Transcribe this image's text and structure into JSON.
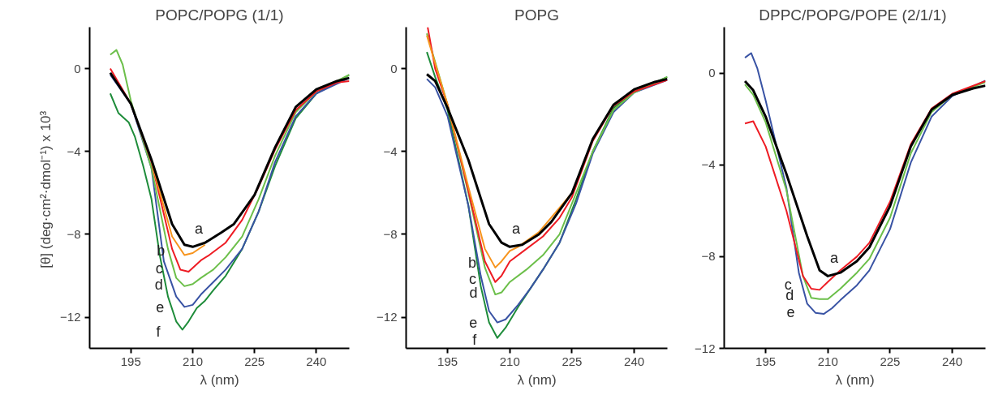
{
  "chart_data": [
    {
      "type": "line",
      "title": "POPC/POPG (1/1)",
      "xlabel": "λ (nm)",
      "ylabel": "[θ]  (deg·cm²·dmol⁻¹) x 10³",
      "xlim": [
        185,
        248
      ],
      "ylim": [
        -13.5,
        2
      ],
      "xticks": [
        195,
        210,
        225,
        240
      ],
      "yticks": [
        0,
        -4,
        -8,
        -12
      ],
      "series": [
        {
          "color": "#000000",
          "x": [
            190,
            195,
            200,
            205,
            208,
            210,
            213,
            217,
            220,
            225,
            230,
            235,
            240,
            245,
            248
          ],
          "values": [
            -0.2,
            -1.7,
            -4.4,
            -7.5,
            -8.5,
            -8.6,
            -8.4,
            -7.9,
            -7.5,
            -6.1,
            -3.8,
            -1.85,
            -1.0,
            -0.6,
            -0.45
          ]
        },
        {
          "color": "#f7941d",
          "x": [
            200,
            205,
            208,
            210,
            213
          ],
          "values": [
            -4.5,
            -8.1,
            -9.0,
            -8.9,
            -8.5
          ]
        },
        {
          "color": "#ee1c24",
          "x": [
            190,
            195,
            200,
            205,
            207,
            209,
            212,
            214,
            218,
            222,
            226,
            230,
            235,
            240,
            245,
            248
          ],
          "values": [
            0.0,
            -1.7,
            -4.5,
            -8.7,
            -9.7,
            -9.8,
            -9.25,
            -9.0,
            -8.4,
            -7.3,
            -5.7,
            -3.9,
            -2.0,
            -1.1,
            -0.67,
            -0.6
          ]
        },
        {
          "color": "#6cbf4a",
          "x": [
            190,
            191.5,
            193,
            195,
            200,
            204,
            206,
            208,
            210,
            212,
            215,
            218,
            222,
            226,
            230,
            235,
            240,
            248
          ],
          "values": [
            0.67,
            0.9,
            0.2,
            -1.55,
            -4.8,
            -8.7,
            -10.1,
            -10.5,
            -10.4,
            -10.1,
            -9.7,
            -9.1,
            -8.1,
            -6.3,
            -4.2,
            -2.1,
            -1.1,
            -0.3
          ]
        },
        {
          "color": "#3953a4",
          "x": [
            190,
            195,
            200,
            203,
            206,
            208,
            210,
            212,
            215,
            218,
            222,
            226,
            230,
            235,
            240,
            248
          ],
          "values": [
            -0.3,
            -1.7,
            -4.8,
            -9.3,
            -11.0,
            -11.5,
            -11.4,
            -10.9,
            -10.3,
            -9.7,
            -8.7,
            -6.9,
            -4.5,
            -2.3,
            -1.2,
            -0.45
          ]
        },
        {
          "color": "#1e8c3a",
          "x": [
            190,
            192,
            194.5,
            196,
            198,
            200,
            202,
            204,
            206,
            207.5,
            209,
            211,
            213,
            215,
            218,
            222,
            226,
            230,
            235,
            240,
            248
          ],
          "values": [
            -1.2,
            -2.15,
            -2.6,
            -3.3,
            -4.7,
            -6.3,
            -9.0,
            -11.0,
            -12.2,
            -12.6,
            -12.2,
            -11.55,
            -11.2,
            -10.7,
            -10.0,
            -8.7,
            -6.9,
            -4.7,
            -2.4,
            -1.2,
            -0.3
          ]
        }
      ],
      "annotations": [
        "a",
        "b",
        "c",
        "d",
        "e",
        "f"
      ]
    },
    {
      "type": "line",
      "title": "POPG",
      "xlabel": "λ (nm)",
      "xlim": [
        185,
        248
      ],
      "ylim": [
        -13.5,
        2
      ],
      "xticks": [
        195,
        210,
        225,
        240
      ],
      "yticks": [
        0,
        -4,
        -8,
        -12
      ],
      "series": [
        {
          "color": "#000000",
          "x": [
            190,
            192,
            195,
            200,
            205,
            208,
            210,
            213,
            217,
            220,
            225,
            230,
            235,
            240,
            245,
            248
          ],
          "values": [
            -0.27,
            -0.6,
            -1.9,
            -4.4,
            -7.5,
            -8.4,
            -8.6,
            -8.5,
            -8.0,
            -7.4,
            -6.0,
            -3.4,
            -1.75,
            -1.0,
            -0.64,
            -0.5
          ]
        },
        {
          "color": "#f7941d",
          "x": [
            190,
            195,
            200,
            204,
            206.5,
            208,
            210,
            212,
            217,
            225
          ],
          "values": [
            1.6,
            -1.75,
            -5.7,
            -8.7,
            -9.6,
            -9.3,
            -8.8,
            -8.6,
            -7.9,
            -6.0
          ]
        },
        {
          "color": "#ee1c24",
          "x": [
            190.2,
            192,
            195,
            200,
            204,
            206.5,
            208,
            210,
            214,
            218,
            222,
            225,
            230,
            235,
            240,
            248
          ],
          "values": [
            2.0,
            0.0,
            -1.75,
            -5.9,
            -9.3,
            -10.3,
            -10.0,
            -9.3,
            -8.7,
            -8.1,
            -7.2,
            -6.2,
            -3.5,
            -1.8,
            -1.1,
            -0.55
          ]
        },
        {
          "color": "#6cbf4a",
          "x": [
            190,
            195,
            200,
            204,
            206.5,
            208,
            210,
            214,
            218,
            222,
            226,
            230,
            235,
            240,
            248
          ],
          "values": [
            1.7,
            -1.75,
            -6.0,
            -9.6,
            -10.9,
            -10.8,
            -10.3,
            -9.7,
            -9.0,
            -8.0,
            -6.0,
            -4.0,
            -2.0,
            -1.15,
            -0.4
          ]
        },
        {
          "color": "#3953a4",
          "x": [
            190,
            192,
            195,
            200,
            203,
            205,
            207,
            209,
            212,
            215,
            218,
            222,
            226,
            230,
            235,
            240,
            248
          ],
          "values": [
            -0.5,
            -0.9,
            -2.3,
            -6.6,
            -10.0,
            -11.7,
            -12.25,
            -12.1,
            -11.4,
            -10.6,
            -9.7,
            -8.4,
            -6.5,
            -4.1,
            -2.1,
            -1.15,
            -0.55
          ]
        },
        {
          "color": "#1e8c3a",
          "x": [
            190,
            192,
            195,
            200,
            203,
            205,
            207,
            209,
            212,
            215,
            218,
            222,
            226,
            230,
            235,
            240,
            248
          ],
          "values": [
            0.8,
            -0.4,
            -2.0,
            -6.6,
            -10.5,
            -12.25,
            -13.0,
            -12.5,
            -11.5,
            -10.6,
            -9.7,
            -8.4,
            -6.3,
            -4.0,
            -1.9,
            -1.1,
            -0.4
          ]
        }
      ],
      "annotations": [
        "a",
        "b",
        "c",
        "d",
        "e",
        "f"
      ]
    },
    {
      "type": "line",
      "title": "DPPC/POPG/POPE  (2/1/1)",
      "xlabel": "λ (nm)",
      "xlim": [
        185,
        248
      ],
      "ylim": [
        -12,
        2
      ],
      "xticks": [
        195,
        210,
        225,
        240
      ],
      "yticks": [
        0,
        -4,
        -8,
        -12
      ],
      "series": [
        {
          "color": "#000000",
          "x": [
            190,
            192,
            195,
            200,
            205,
            208,
            210,
            213,
            217,
            220,
            225,
            230,
            235,
            240,
            245,
            248
          ],
          "values": [
            -0.35,
            -0.75,
            -1.9,
            -4.4,
            -7.1,
            -8.6,
            -8.85,
            -8.7,
            -8.2,
            -7.6,
            -5.8,
            -3.2,
            -1.6,
            -0.95,
            -0.67,
            -0.55
          ]
        },
        {
          "color": "#ee1c24",
          "x": [
            190,
            192,
            195,
            200,
            204,
            206,
            208,
            210,
            213,
            217,
            220,
            225,
            230,
            235,
            240,
            248
          ],
          "values": [
            -2.2,
            -2.1,
            -3.2,
            -6.0,
            -8.85,
            -9.4,
            -9.45,
            -9.1,
            -8.6,
            -8.0,
            -7.4,
            -5.6,
            -3.1,
            -1.55,
            -0.9,
            -0.35
          ]
        },
        {
          "color": "#6cbf4a",
          "x": [
            190,
            192,
            195,
            200,
            204,
            206,
            208,
            210,
            213,
            217,
            220,
            225,
            230,
            235,
            240,
            248
          ],
          "values": [
            -0.5,
            -0.95,
            -2.15,
            -5.1,
            -8.85,
            -9.8,
            -9.85,
            -9.85,
            -9.4,
            -8.7,
            -8.1,
            -6.3,
            -3.5,
            -1.7,
            -0.95,
            -0.4
          ]
        },
        {
          "color": "#3953a4",
          "x": [
            190,
            191.5,
            193,
            195,
            200,
            203,
            205,
            207,
            209,
            211,
            213,
            217,
            220,
            225,
            230,
            235,
            240,
            248
          ],
          "values": [
            0.67,
            0.87,
            0.2,
            -1.2,
            -5.0,
            -8.7,
            -10.05,
            -10.45,
            -10.5,
            -10.25,
            -9.9,
            -9.25,
            -8.6,
            -6.8,
            -3.9,
            -1.9,
            -1.0,
            -0.33
          ]
        }
      ],
      "annotations": [
        "a",
        "c",
        "d",
        "e"
      ]
    }
  ]
}
